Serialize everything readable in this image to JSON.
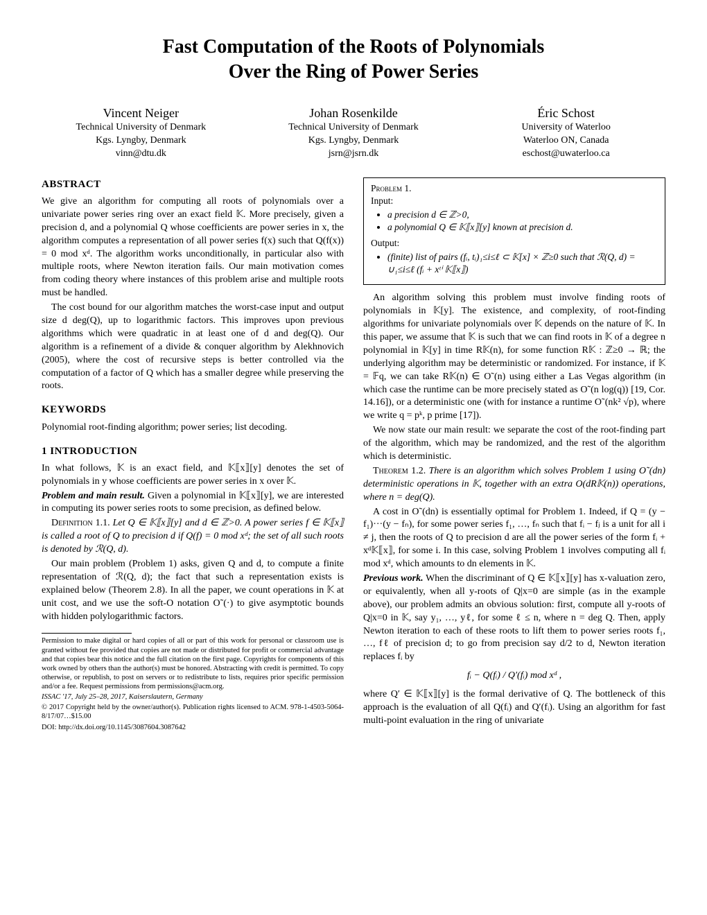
{
  "title_line1": "Fast Computation of the Roots of Polynomials",
  "title_line2": "Over the Ring of Power Series",
  "authors": [
    {
      "name": "Vincent Neiger",
      "affil": "Technical University of Denmark",
      "loc": "Kgs. Lyngby, Denmark",
      "email": "vinn@dtu.dk"
    },
    {
      "name": "Johan Rosenkilde",
      "affil": "Technical University of Denmark",
      "loc": "Kgs. Lyngby, Denmark",
      "email": "jsrn@jsrn.dk"
    },
    {
      "name": "Éric Schost",
      "affil": "University of Waterloo",
      "loc": "Waterloo ON, Canada",
      "email": "eschost@uwaterloo.ca"
    }
  ],
  "left": {
    "abstract_head": "ABSTRACT",
    "abstract_p1": "We give an algorithm for computing all roots of polynomials over a univariate power series ring over an exact field 𝕂. More precisely, given a precision d, and a polynomial Q whose coefficients are power series in x, the algorithm computes a representation of all power series f(x) such that Q(f(x)) = 0 mod xᵈ. The algorithm works unconditionally, in particular also with multiple roots, where Newton iteration fails. Our main motivation comes from coding theory where instances of this problem arise and multiple roots must be handled.",
    "abstract_p2": "The cost bound for our algorithm matches the worst-case input and output size d deg(Q), up to logarithmic factors. This improves upon previous algorithms which were quadratic in at least one of d and deg(Q). Our algorithm is a refinement of a divide & conquer algorithm by Alekhnovich (2005), where the cost of recursive steps is better controlled via the computation of a factor of Q which has a smaller degree while preserving the roots.",
    "keywords_head": "KEYWORDS",
    "keywords_body": "Polynomial root-finding algorithm; power series; list decoding.",
    "intro_head": "1   INTRODUCTION",
    "intro_p1": "In what follows, 𝕂 is an exact field, and 𝕂⟦x⟧[y] denotes the set of polynomials in y whose coefficients are power series in x over 𝕂.",
    "problem_runin": "Problem and main result.",
    "problem_p1": " Given a polynomial in 𝕂⟦x⟧[y], we are interested in computing its power series roots to some precision, as defined below.",
    "def_head": "Definition 1.1.",
    "def_body": " Let Q ∈ 𝕂⟦x⟧[y] and d ∈ ℤ>0. A power series f ∈ 𝕂⟦x⟧ is called a root of Q to precision d if Q(f) = 0 mod xᵈ; the set of all such roots is denoted by ℛ(Q, d).",
    "intro_p2": "Our main problem (Problem 1) asks, given Q and d, to compute a finite representation of ℛ(Q, d); the fact that such a representation exists is explained below (Theorem 2.8). In all the paper, we count operations in 𝕂 at unit cost, and we use the soft-O notation O˜(·) to give asymptotic bounds with hidden polylogarithmic factors.",
    "foot_perm": "Permission to make digital or hard copies of all or part of this work for personal or classroom use is granted without fee provided that copies are not made or distributed for profit or commercial advantage and that copies bear this notice and the full citation on the first page. Copyrights for components of this work owned by others than the author(s) must be honored. Abstracting with credit is permitted. To copy otherwise, or republish, to post on servers or to redistribute to lists, requires prior specific permission and/or a fee. Request permissions from permissions@acm.org.",
    "foot_venue": "ISSAC '17, July 25–28, 2017, Kaiserslautern, Germany",
    "foot_copy": "© 2017 Copyright held by the owner/author(s). Publication rights licensed to ACM. 978-1-4503-5064-8/17/07…$15.00",
    "foot_doi": "DOI: http://dx.doi.org/10.1145/3087604.3087642"
  },
  "right": {
    "prob_head": "Problem 1.",
    "prob_input": "Input:",
    "prob_in1": "a precision d ∈ ℤ>0,",
    "prob_in2": "a polynomial Q ∈ 𝕂⟦x⟧[y] known at precision d.",
    "prob_output": "Output:",
    "prob_out1": "(finite) list of pairs (fᵢ, tᵢ)₁≤i≤ℓ ⊂ 𝕂[x] × ℤ≥0 such that ℛ(Q, d) = ∪₁≤i≤ℓ (fᵢ + xᵗⁱ 𝕂⟦x⟧)",
    "p1": "An algorithm solving this problem must involve finding roots of polynomials in 𝕂[y]. The existence, and complexity, of root-finding algorithms for univariate polynomials over 𝕂 depends on the nature of 𝕂. In this paper, we assume that 𝕂 is such that we can find roots in 𝕂 of a degree n polynomial in 𝕂[y] in time R𝕂(n), for some function R𝕂 : ℤ≥0 → ℝ; the underlying algorithm may be deterministic or randomized. For instance, if 𝕂 = 𝔽q, we can take R𝕂(n) ∈ O˜(n) using either a Las Vegas algorithm (in which case the runtime can be more precisely stated as O˜(n log(q)) [19, Cor. 14.16]), or a deterministic one (with for instance a runtime O˜(nk² √p), where we write q = pᵏ, p prime [17]).",
    "p2": "We now state our main result: we separate the cost of the root-finding part of the algorithm, which may be randomized, and the rest of the algorithm which is deterministic.",
    "thm_head": "Theorem 1.2.",
    "thm_body": " There is an algorithm which solves Problem 1 using O˜(dn) deterministic operations in 𝕂, together with an extra O(dR𝕂(n)) operations, where n = deg(Q).",
    "p3": "A cost in O˜(dn) is essentially optimal for Problem 1. Indeed, if Q = (y − f₁)···(y − fₙ), for some power series f₁, …, fₙ such that fᵢ − fⱼ is a unit for all i ≠ j, then the roots of Q to precision d are all the power series of the form fᵢ + xᵈ𝕂⟦x⟧, for some i. In this case, solving Problem 1 involves computing all fᵢ mod xᵈ, which amounts to dn elements in 𝕂.",
    "prev_runin": "Previous work.",
    "prev_p1": " When the discriminant of Q ∈ 𝕂⟦x⟧[y] has x-valuation zero, or equivalently, when all y-roots of Q|x=0 are simple (as in the example above), our problem admits an obvious solution: first, compute all y-roots of Q|x=0 in 𝕂, say y₁, …, yℓ, for some ℓ ≤ n, where n = deg Q. Then, apply Newton iteration to each of these roots to lift them to power series roots f₁, …, fℓ of precision d; to go from precision say d/2 to d, Newton iteration replaces fᵢ by",
    "display_math": "fᵢ − Q(fᵢ) / Q′(fᵢ)  mod xᵈ ,",
    "prev_p2": "where Q′ ∈ 𝕂⟦x⟧[y] is the formal derivative of Q. The bottleneck of this approach is the evaluation of all Q(fᵢ) and Q′(fᵢ). Using an algorithm for fast multi-point evaluation in the ring of univariate"
  }
}
